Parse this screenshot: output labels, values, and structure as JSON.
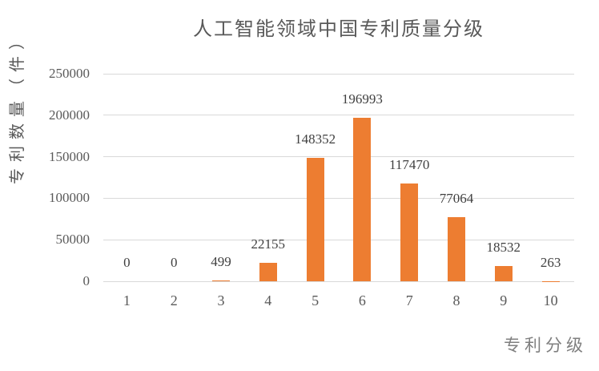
{
  "chart_data": {
    "type": "bar",
    "title": "人工智能领域中国专利质量分级",
    "xlabel": "专利分级",
    "ylabel": "专利数量（件）",
    "categories": [
      "1",
      "2",
      "3",
      "4",
      "5",
      "6",
      "7",
      "8",
      "9",
      "10"
    ],
    "values": [
      0,
      0,
      499,
      22155,
      148352,
      196993,
      117470,
      77064,
      18532,
      263
    ],
    "data_labels": [
      "0",
      "0",
      "499",
      "22155",
      "148352",
      "196993",
      "117470",
      "77064",
      "18532",
      "263"
    ],
    "ylim": [
      0,
      250000
    ],
    "yticks": [
      0,
      50000,
      100000,
      150000,
      200000,
      250000
    ],
    "ytick_labels": [
      "0",
      "50000",
      "100000",
      "150000",
      "200000",
      "250000"
    ],
    "grid": true,
    "legend": "none",
    "colors": {
      "bar": "#ED7D31",
      "gridline": "#D9D9D9",
      "title_text": "#595959",
      "axis_text": "#595959",
      "data_label_text": "#404040",
      "x_axis_title_text": "#7F7F7F",
      "background": "#FFFFFF"
    }
  }
}
